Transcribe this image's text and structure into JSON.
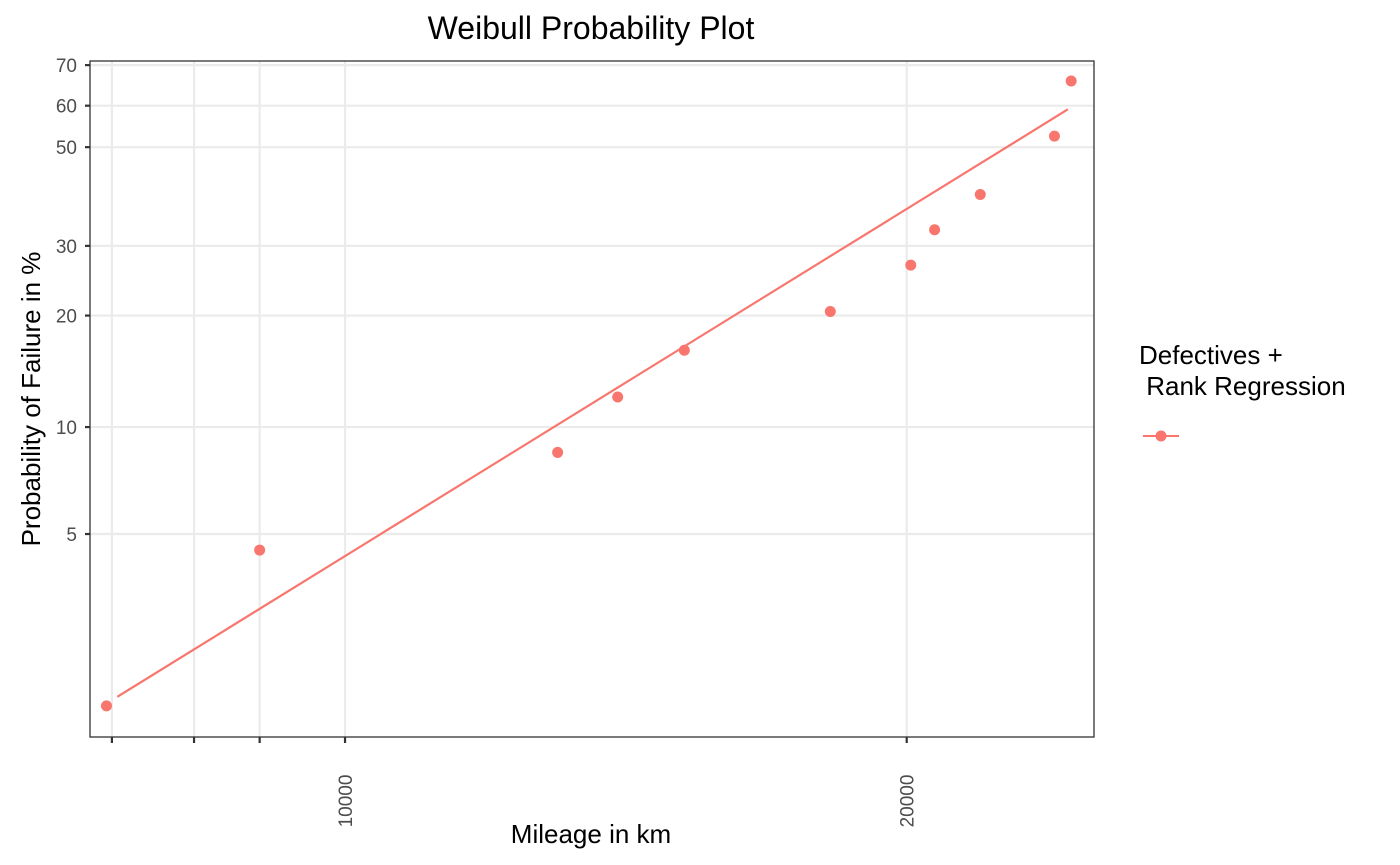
{
  "chart_data": {
    "type": "scatter",
    "title": "Weibull Probability Plot",
    "xlabel": "Mileage in km",
    "ylabel": "Probability of Failure in %",
    "x_scale": "log",
    "y_scale": "weibull",
    "xlim": [
      7300,
      25200
    ],
    "ylim": [
      1.3,
      71
    ],
    "x_ticks": [
      10000,
      20000
    ],
    "x_minor_ticks": [
      7500,
      8300,
      9000
    ],
    "y_ticks": [
      5,
      10,
      20,
      30,
      50,
      60,
      70
    ],
    "grid": true,
    "legend": {
      "title_lines": [
        "Defectives +",
        " Rank Regression"
      ],
      "placement": "right"
    },
    "series": [
      {
        "name": "Defectives + Rank Regression",
        "color": "#F8766D",
        "points": [
          {
            "x": 7450,
            "y": 1.6
          },
          {
            "x": 9000,
            "y": 4.5
          },
          {
            "x": 13000,
            "y": 8.5
          },
          {
            "x": 14000,
            "y": 12.1
          },
          {
            "x": 15200,
            "y": 16.2
          },
          {
            "x": 18200,
            "y": 20.5
          },
          {
            "x": 20100,
            "y": 26.9
          },
          {
            "x": 20700,
            "y": 32.8
          },
          {
            "x": 21900,
            "y": 39.6
          },
          {
            "x": 24000,
            "y": 52.6
          },
          {
            "x": 24500,
            "y": 66.1
          }
        ],
        "fit_line": [
          {
            "x": 7550,
            "y": 1.7
          },
          {
            "x": 24400,
            "y": 59.1
          }
        ]
      }
    ]
  }
}
